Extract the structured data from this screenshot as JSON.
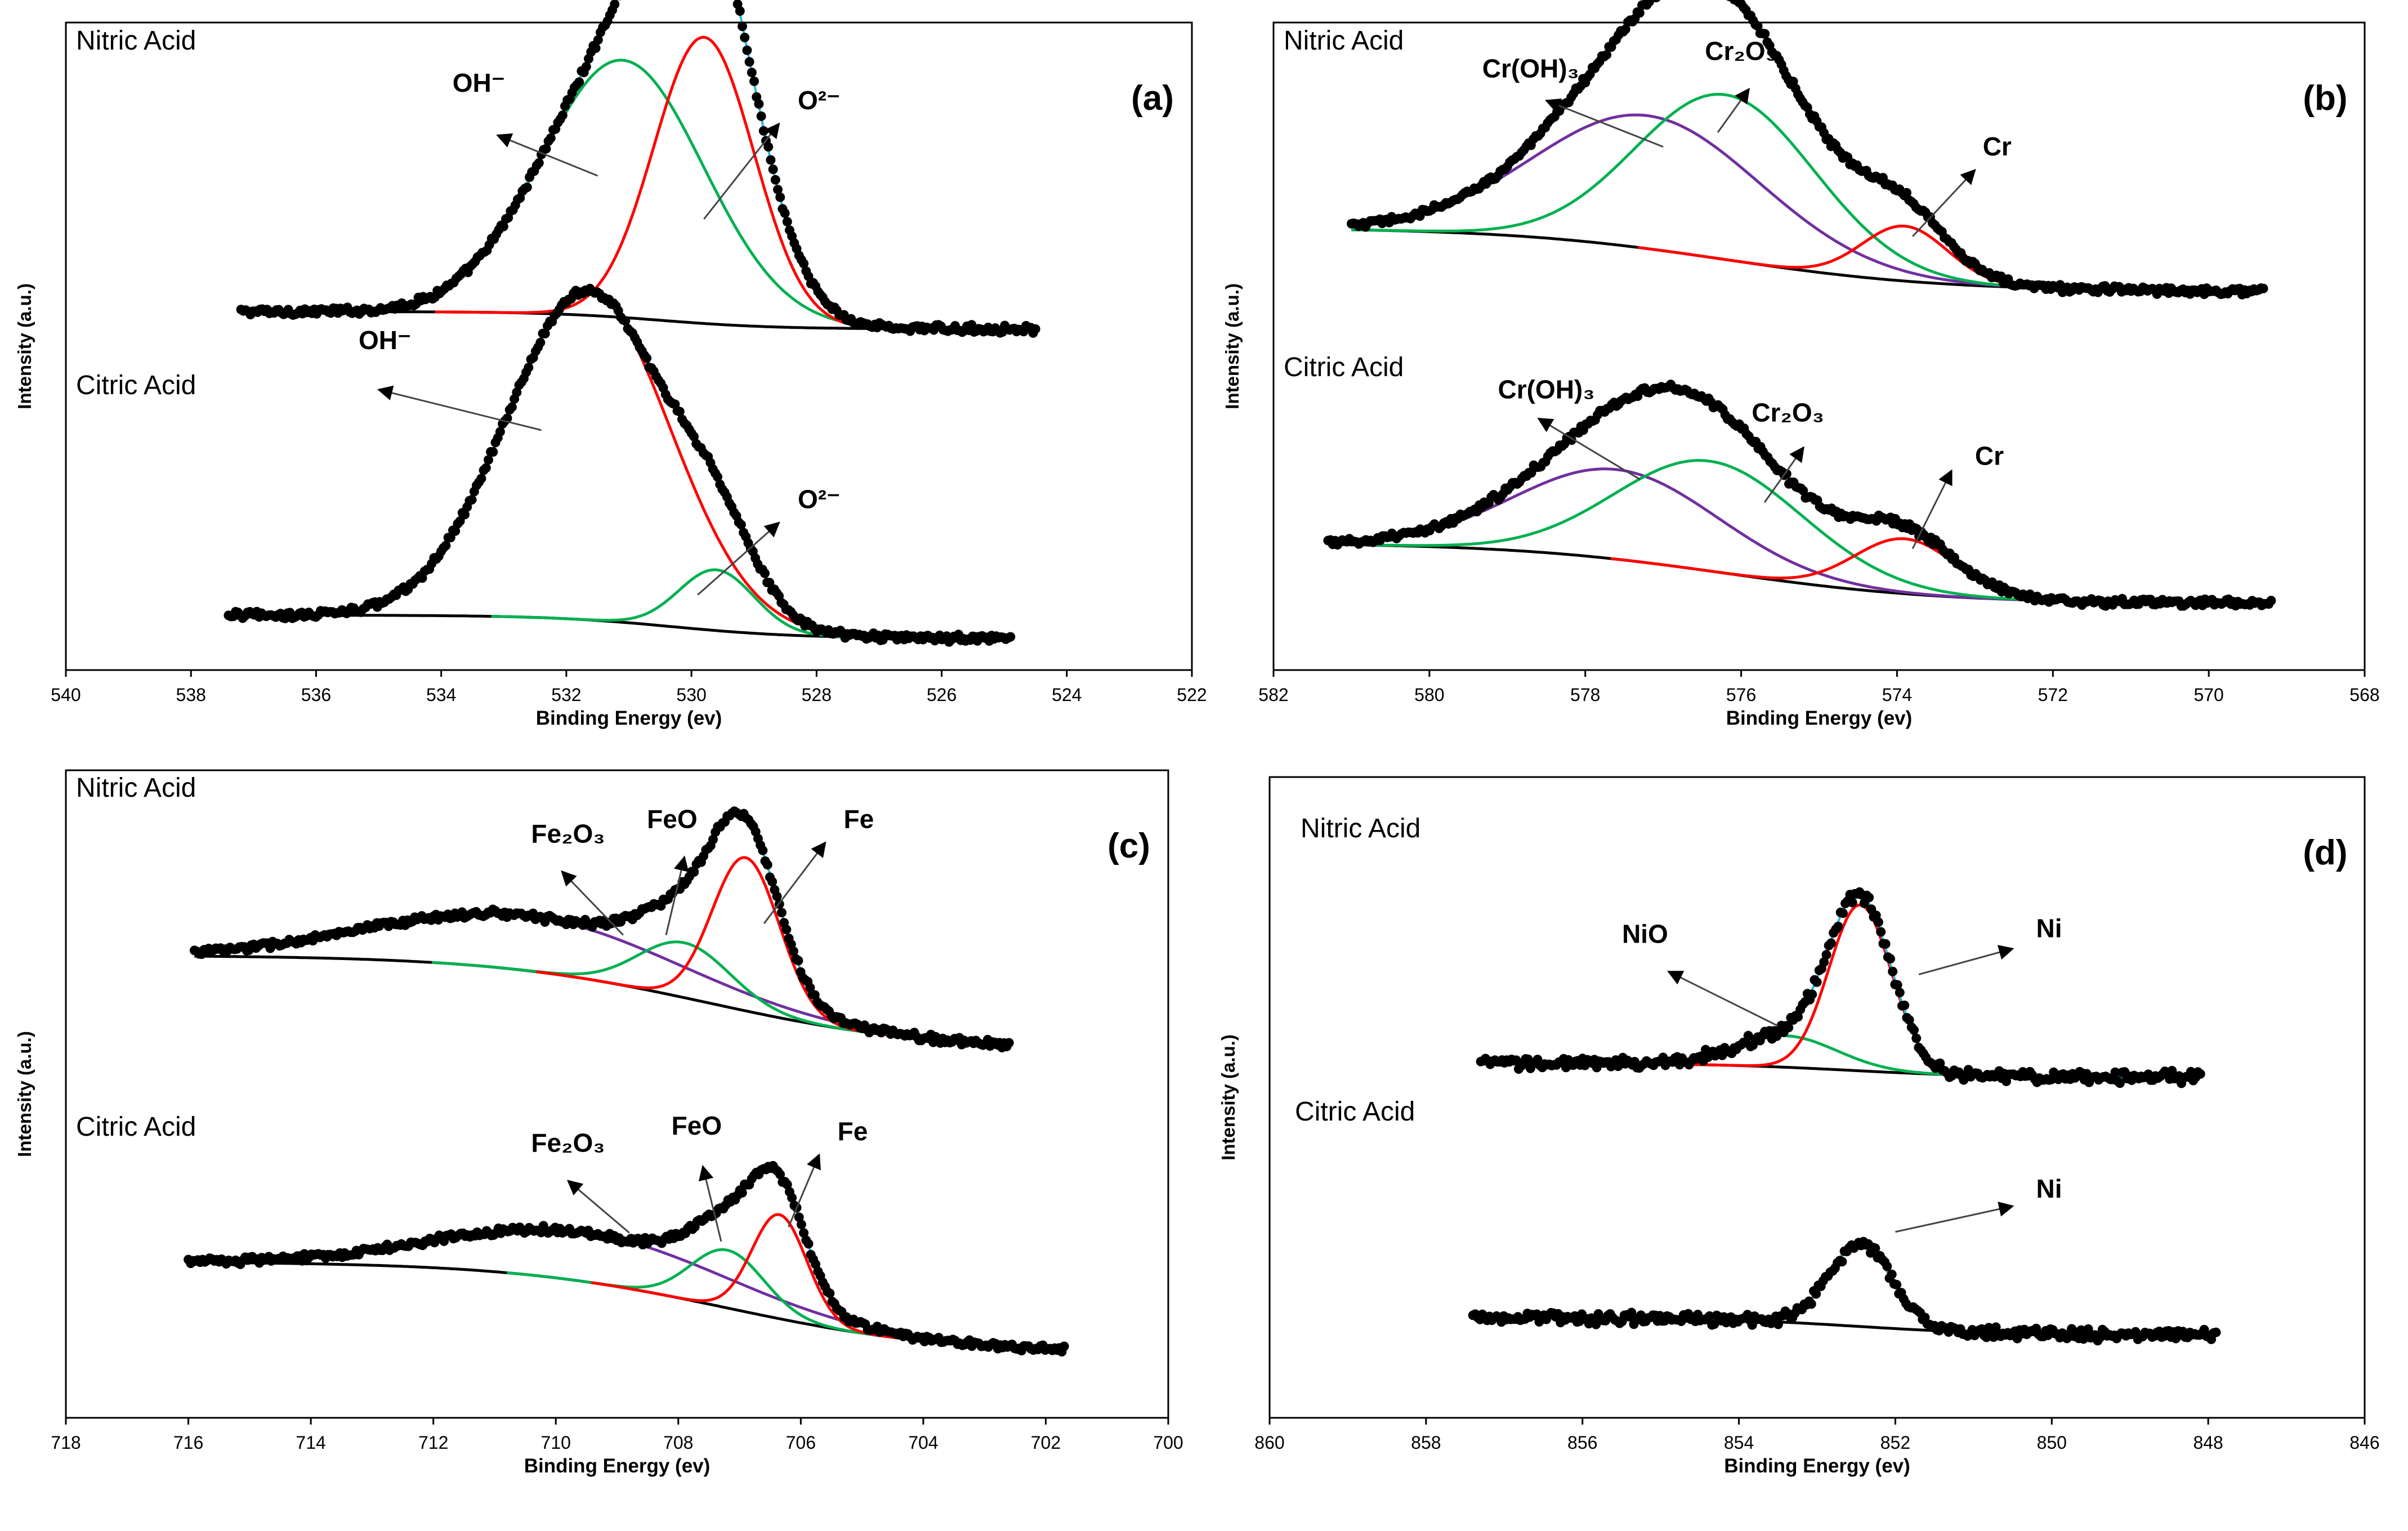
{
  "chart_data": [
    {
      "type": "line",
      "panel_label": "(a)",
      "xlabel": "Binding Energy (ev)",
      "ylabel": "Intensity (a.u.)",
      "xlim": [
        540,
        522
      ],
      "xticks": [
        540,
        538,
        536,
        534,
        532,
        530,
        528,
        526,
        524,
        522
      ],
      "ylim": [
        0,
        11.2
      ],
      "grid": false,
      "samples": [
        {
          "name": "Nitric Acid",
          "x_range": [
            537.2,
            524.5
          ],
          "noise": 0.05,
          "background": {
            "start": 6.2,
            "end": 5.9,
            "center": 530.5,
            "width": 0.9
          },
          "components": [
            {
              "name": "OH⁻",
              "label": "OH⁻",
              "color": "#00b050",
              "center": 531.1,
              "height": 4.45,
              "width": 1.3
            },
            {
              "name": "O²⁻",
              "label": "O²⁻",
              "color": "#ff0000",
              "center": 529.8,
              "height": 4.95,
              "width": 0.8
            }
          ],
          "annotations": [
            {
              "text": "OH⁻",
              "x": 533.4,
              "y": 10.0,
              "tail_x": 531.5,
              "tail_y": 8.55,
              "head_x": 533.1,
              "head_y": 9.25,
              "align": "middle"
            },
            {
              "text": "O²⁻",
              "x": 528.3,
              "y": 9.7,
              "tail_x": 529.8,
              "tail_y": 7.8,
              "head_x": 528.6,
              "head_y": 9.45,
              "align": "start"
            }
          ]
        },
        {
          "name": "Citric Acid",
          "x_range": [
            537.4,
            524.9
          ],
          "noise": 0.05,
          "background": {
            "start": 0.95,
            "end": 0.55,
            "center": 530.3,
            "width": 1.0
          },
          "components": [
            {
              "name": "OH⁻",
              "label": "OH⁻",
              "color": "#ff0000",
              "center": 531.65,
              "height": 5.7,
              "width": 1.3
            },
            {
              "name": "O²⁻",
              "label": "O²⁻",
              "color": "#00b050",
              "center": 529.6,
              "height": 1.05,
              "width": 0.6
            }
          ],
          "annotations": [
            {
              "text": "OH⁻",
              "x": 534.9,
              "y": 5.55,
              "tail_x": 532.4,
              "tail_y": 4.15,
              "head_x": 535.0,
              "head_y": 4.85,
              "align": "middle"
            },
            {
              "text": "O²⁻",
              "x": 528.3,
              "y": 2.8,
              "tail_x": 529.9,
              "tail_y": 1.3,
              "head_x": 528.6,
              "head_y": 2.55,
              "align": "start"
            }
          ]
        }
      ]
    },
    {
      "type": "line",
      "panel_label": "(b)",
      "xlabel": "Binding Energy (ev)",
      "ylabel": "Intensity (a.u.)",
      "xlim": [
        582,
        568
      ],
      "xticks": [
        582,
        580,
        578,
        576,
        574,
        572,
        570,
        568
      ],
      "ylim": [
        0,
        11.2
      ],
      "grid": false,
      "samples": [
        {
          "name": "Nitric Acid",
          "x_range": [
            581.0,
            569.3
          ],
          "noise": 0.05,
          "background": {
            "start": 7.65,
            "end": 6.55,
            "center": 576.2,
            "width": 1.4
          },
          "components": [
            {
              "name": "Cr(OH)₃",
              "label": "Cr(OH)₃",
              "color": "#7030a0",
              "center": 577.2,
              "height": 2.3,
              "width": 1.45
            },
            {
              "name": "Cr₂O₃",
              "label": "Cr₂O₃",
              "color": "#00b050",
              "center": 576.2,
              "height": 2.85,
              "width": 1.15
            },
            {
              "name": "Cr",
              "label": "Cr",
              "color": "#ff0000",
              "center": 573.9,
              "height": 0.95,
              "width": 0.55
            }
          ],
          "annotations": [
            {
              "text": "Cr(OH)₃",
              "x": 578.7,
              "y": 10.25,
              "tail_x": 577.0,
              "tail_y": 9.05,
              "head_x": 578.5,
              "head_y": 9.85,
              "align": "middle"
            },
            {
              "text": "Cr₂O₃",
              "x": 576.0,
              "y": 10.55,
              "tail_x": 576.3,
              "tail_y": 9.3,
              "head_x": 575.9,
              "head_y": 10.05,
              "align": "middle"
            },
            {
              "text": "Cr",
              "x": 572.9,
              "y": 8.9,
              "tail_x": 573.8,
              "tail_y": 7.5,
              "head_x": 573.0,
              "head_y": 8.65,
              "align": "start"
            }
          ]
        },
        {
          "name": "Citric Acid",
          "x_range": [
            581.3,
            569.2
          ],
          "noise": 0.05,
          "background": {
            "start": 2.2,
            "end": 1.15,
            "center": 576.2,
            "width": 1.4
          },
          "components": [
            {
              "name": "Cr(OH)₃",
              "label": "Cr(OH)₃",
              "color": "#7030a0",
              "center": 577.6,
              "height": 1.55,
              "width": 1.3
            },
            {
              "name": "Cr₂O₃",
              "label": "Cr₂O₃",
              "color": "#00b050",
              "center": 576.4,
              "height": 1.9,
              "width": 1.2
            },
            {
              "name": "Cr",
              "label": "Cr",
              "color": "#ff0000",
              "center": 573.9,
              "height": 0.95,
              "width": 0.65
            }
          ],
          "annotations": [
            {
              "text": "Cr(OH)₃",
              "x": 578.5,
              "y": 4.7,
              "tail_x": 577.3,
              "tail_y": 3.3,
              "head_x": 578.6,
              "head_y": 4.35,
              "align": "middle"
            },
            {
              "text": "Cr₂O₃",
              "x": 575.4,
              "y": 4.3,
              "tail_x": 575.7,
              "tail_y": 2.9,
              "head_x": 575.2,
              "head_y": 3.85,
              "align": "middle"
            },
            {
              "text": "Cr",
              "x": 573.0,
              "y": 3.55,
              "tail_x": 573.8,
              "tail_y": 2.1,
              "head_x": 573.3,
              "head_y": 3.45,
              "align": "start"
            }
          ]
        }
      ]
    },
    {
      "type": "line",
      "panel_label": "(c)",
      "xlabel": "Binding Energy (ev)",
      "ylabel": "Intensity (a.u.)",
      "xlim": [
        718,
        700
      ],
      "xticks": [
        718,
        716,
        714,
        712,
        710,
        708,
        706,
        704,
        702,
        700
      ],
      "ylim": [
        0,
        11.2
      ],
      "grid": false,
      "samples": [
        {
          "name": "Nitric Acid",
          "x_range": [
            715.9,
            702.6
          ],
          "noise": 0.05,
          "background": {
            "start": 8.0,
            "end": 6.35,
            "center": 707.5,
            "width": 1.8
          },
          "components": [
            {
              "name": "Fe₂O₃",
              "label": "Fe₂O₃",
              "color": "#7030a0",
              "center": 710.5,
              "height": 0.95,
              "width": 2.4
            },
            {
              "name": "FeO",
              "label": "FeO",
              "color": "#00b050",
              "center": 707.9,
              "height": 0.95,
              "width": 0.75
            },
            {
              "name": "Fe",
              "label": "Fe",
              "color": "#ff0000",
              "center": 706.9,
              "height": 2.65,
              "width": 0.55
            }
          ],
          "annotations": [
            {
              "text": "Fe₂O₃",
              "x": 709.8,
              "y": 9.95,
              "tail_x": 708.9,
              "tail_y": 8.35,
              "head_x": 709.9,
              "head_y": 9.45,
              "align": "middle"
            },
            {
              "text": "FeO",
              "x": 708.1,
              "y": 10.2,
              "tail_x": 708.2,
              "tail_y": 8.35,
              "head_x": 707.9,
              "head_y": 9.7,
              "align": "middle"
            },
            {
              "text": "Fe",
              "x": 705.3,
              "y": 10.2,
              "tail_x": 706.6,
              "tail_y": 8.55,
              "head_x": 705.6,
              "head_y": 9.95,
              "align": "start"
            }
          ]
        },
        {
          "name": "Citric Acid",
          "x_range": [
            716.0,
            701.7
          ],
          "noise": 0.05,
          "background": {
            "start": 2.7,
            "end": 1.1,
            "center": 707.2,
            "width": 1.8
          },
          "components": [
            {
              "name": "Fe₂O₃",
              "label": "Fe₂O₃",
              "color": "#7030a0",
              "center": 709.5,
              "height": 0.85,
              "width": 2.3
            },
            {
              "name": "FeO",
              "label": "FeO",
              "color": "#00b050",
              "center": 707.2,
              "height": 1.0,
              "width": 0.6
            },
            {
              "name": "Fe",
              "label": "Fe",
              "color": "#ff0000",
              "center": 706.35,
              "height": 1.8,
              "width": 0.45
            }
          ],
          "annotations": [
            {
              "text": "Fe₂O₃",
              "x": 709.8,
              "y": 4.6,
              "tail_x": 708.8,
              "tail_y": 3.2,
              "head_x": 709.8,
              "head_y": 4.1,
              "align": "middle"
            },
            {
              "text": "FeO",
              "x": 707.7,
              "y": 4.9,
              "tail_x": 707.3,
              "tail_y": 3.05,
              "head_x": 707.6,
              "head_y": 4.35,
              "align": "middle"
            },
            {
              "text": "Fe",
              "x": 705.4,
              "y": 4.8,
              "tail_x": 706.2,
              "tail_y": 3.3,
              "head_x": 705.7,
              "head_y": 4.55,
              "align": "start"
            }
          ]
        }
      ]
    },
    {
      "type": "line",
      "panel_label": "(d)",
      "xlabel": "Binding Energy (ev)",
      "ylabel": "Intensity (a.u.)",
      "xlim": [
        860,
        846
      ],
      "xticks": [
        860,
        858,
        856,
        854,
        852,
        850,
        848,
        846
      ],
      "ylim": [
        0,
        11.2
      ],
      "grid": false,
      "samples": [
        {
          "name": "Nitric Acid",
          "x_range": [
            857.3,
            848.1
          ],
          "noise": 0.08,
          "background": {
            "start": 6.2,
            "end": 5.95,
            "center": 852.6,
            "width": 0.9
          },
          "components": [
            {
              "name": "NiO",
              "label": "NiO",
              "color": "#00b050",
              "center": 853.4,
              "height": 0.55,
              "width": 0.65
            },
            {
              "name": "Ni",
              "label": "Ni",
              "color": "#ff0000",
              "center": 852.45,
              "height": 2.9,
              "width": 0.4
            }
          ],
          "annotations": [
            {
              "text": "NiO",
              "x": 855.2,
              "y": 8.3,
              "tail_x": 853.5,
              "tail_y": 6.85,
              "head_x": 854.9,
              "head_y": 7.8,
              "align": "middle"
            },
            {
              "text": "Ni",
              "x": 850.2,
              "y": 8.4,
              "tail_x": 851.7,
              "tail_y": 7.75,
              "head_x": 850.5,
              "head_y": 8.2,
              "align": "start"
            }
          ]
        },
        {
          "name": "Citric Acid",
          "x_range": [
            857.4,
            847.9
          ],
          "noise": 0.08,
          "background": {
            "start": 1.75,
            "end": 1.45,
            "center": 852.5,
            "width": 0.9
          },
          "components": [
            {
              "name": "Ni",
              "label": "Ni",
              "color": "#ff0000",
              "center": 852.45,
              "height": 1.45,
              "width": 0.4
            }
          ],
          "annotations": [
            {
              "text": "Ni",
              "x": 850.2,
              "y": 3.85,
              "tail_x": 852.0,
              "tail_y": 3.25,
              "head_x": 850.5,
              "head_y": 3.7,
              "align": "start"
            }
          ]
        }
      ]
    }
  ]
}
